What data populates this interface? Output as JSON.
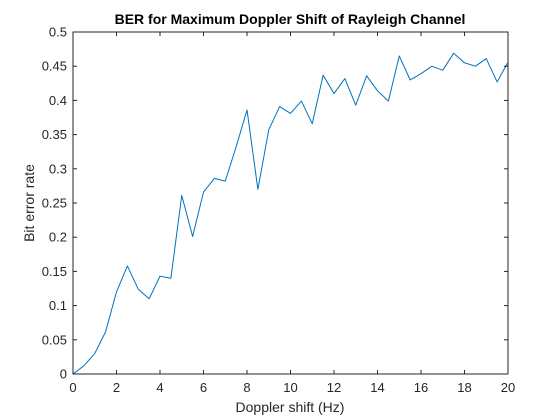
{
  "chart_data": {
    "type": "line",
    "title": "BER for Maximum Doppler Shift of Rayleigh Channel",
    "xlabel": "Doppler shift (Hz)",
    "ylabel": "Bit error rate",
    "xlim": [
      0,
      20
    ],
    "ylim": [
      0,
      0.5
    ],
    "xticks": [
      0,
      2,
      4,
      6,
      8,
      10,
      12,
      14,
      16,
      18,
      20
    ],
    "xtick_labels": [
      "0",
      "2",
      "4",
      "6",
      "8",
      "10",
      "12",
      "14",
      "16",
      "18",
      "20"
    ],
    "yticks": [
      0,
      0.05,
      0.1,
      0.15,
      0.2,
      0.25,
      0.3,
      0.35,
      0.4,
      0.45,
      0.5
    ],
    "ytick_labels": [
      "0",
      "0.05",
      "0.1",
      "0.15",
      "0.2",
      "0.25",
      "0.3",
      "0.35",
      "0.4",
      "0.45",
      "0.5"
    ],
    "grid": false,
    "box": true,
    "line_color": "#0072BD",
    "axis_color": "#262626",
    "series": [
      {
        "x": [
          0,
          0.5,
          1,
          1.5,
          2,
          2.5,
          3,
          3.5,
          4,
          4.5,
          5,
          5.5,
          6,
          6.5,
          7,
          7.5,
          8,
          8.5,
          9,
          9.5,
          10,
          10.5,
          11,
          11.5,
          12,
          12.5,
          13,
          13.5,
          14,
          14.5,
          15,
          15.5,
          16,
          16.5,
          17,
          17.5,
          18,
          18.5,
          19,
          19.5,
          20
        ],
        "values": [
          0,
          0.012,
          0.03,
          0.062,
          0.12,
          0.158,
          0.124,
          0.11,
          0.143,
          0.14,
          0.261,
          0.201,
          0.266,
          0.286,
          0.282,
          0.332,
          0.386,
          0.27,
          0.357,
          0.391,
          0.381,
          0.399,
          0.366,
          0.437,
          0.41,
          0.432,
          0.393,
          0.436,
          0.414,
          0.399,
          0.465,
          0.43,
          0.439,
          0.45,
          0.444,
          0.469,
          0.455,
          0.45,
          0.461,
          0.427,
          0.456
        ]
      }
    ]
  }
}
